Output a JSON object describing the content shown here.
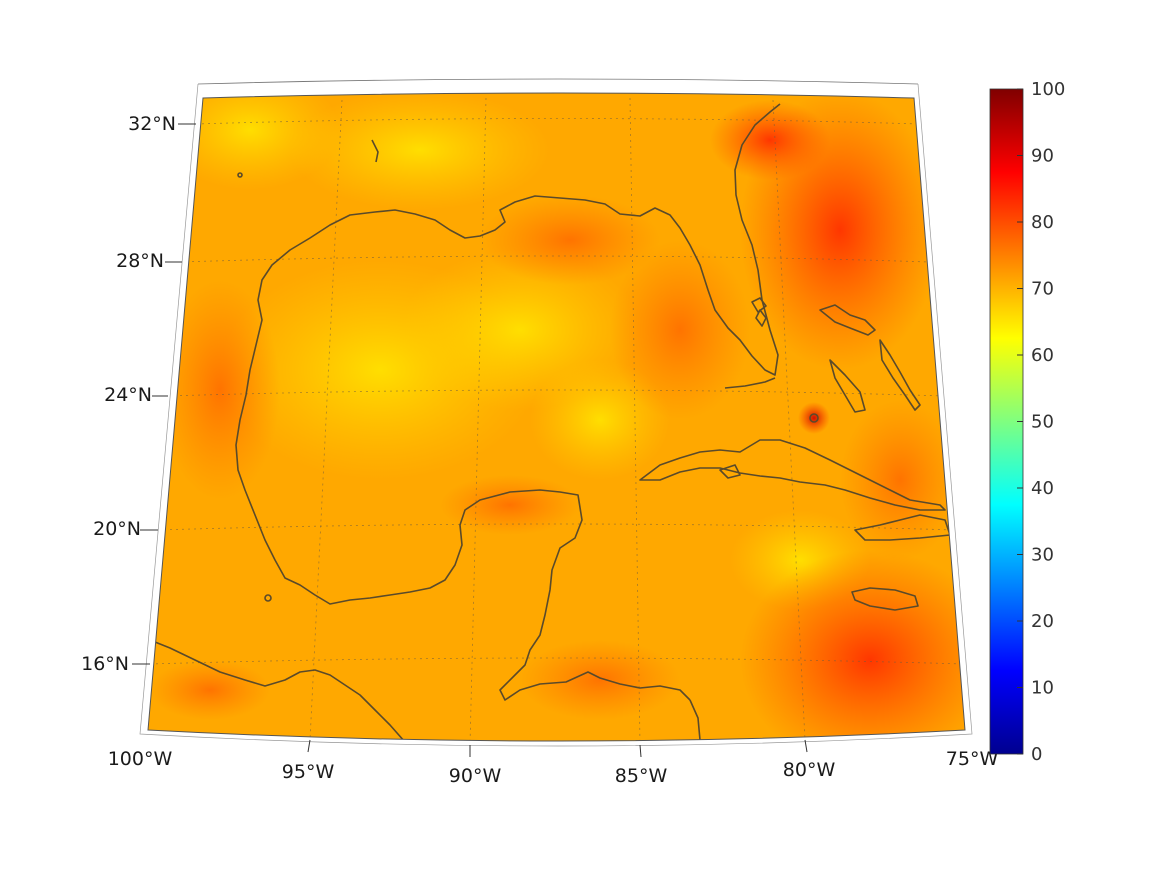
{
  "map": {
    "lon_labels": [
      "100°W",
      "95°W",
      "90°W",
      "85°W",
      "80°W",
      "75°W"
    ],
    "lat_labels": [
      "32°N",
      "28°N",
      "24°N",
      "20°N",
      "16°N"
    ],
    "colorbar": {
      "min": 0,
      "max": 100,
      "ticks": [
        "0",
        "10",
        "20",
        "30",
        "40",
        "50",
        "60",
        "70",
        "80",
        "90",
        "100"
      ],
      "colormap": "jet"
    },
    "colors": {
      "coastline": "#5a4a2a",
      "field_base": "#ffa500",
      "field_high": "#ff3000"
    }
  }
}
